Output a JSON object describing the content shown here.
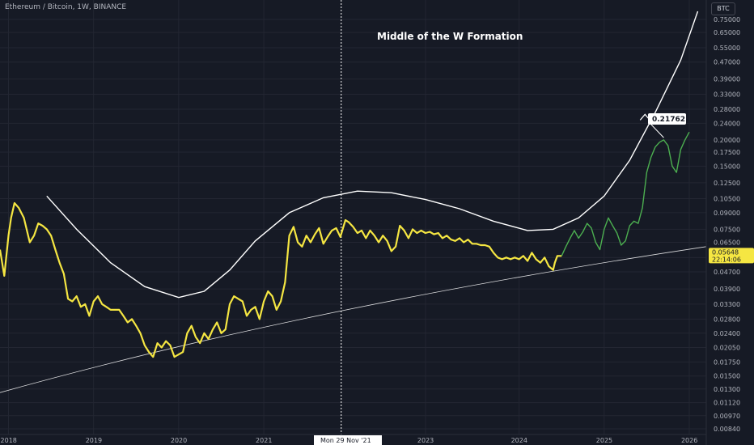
{
  "header": {
    "symbol_line": "Ethereum / Bitcoin, 1W, BINANCE"
  },
  "chart_data": {
    "type": "line",
    "title": "Middle of the W Formation",
    "y_unit": "BTC",
    "y_scale": "log",
    "ylim": [
      0.0084,
      0.82
    ],
    "xlim": [
      2017.9,
      2026.2
    ],
    "x_ticks": [
      "2018",
      "2019",
      "2020",
      "2021",
      "2023",
      "2024",
      "2025",
      "2026"
    ],
    "y_ticks": [
      "0.75000",
      "0.65000",
      "0.55000",
      "0.47000",
      "0.39000",
      "0.33000",
      "0.28000",
      "0.24000",
      "0.20000",
      "0.17500",
      "0.15000",
      "0.12500",
      "0.10500",
      "0.09000",
      "0.07500",
      "0.06500",
      "0.05500",
      "0.04700",
      "0.03900",
      "0.03300",
      "0.02800",
      "0.02400",
      "0.02050",
      "0.01750",
      "0.01500",
      "0.01300",
      "0.01120",
      "0.00970",
      "0.00840"
    ],
    "crosshair": {
      "date_label": "Mon 29 Nov '21"
    },
    "price_label": {
      "value": "0.05648",
      "countdown": "22:14:06",
      "color": "#f5e642"
    },
    "target_label": {
      "value": "0.21762"
    },
    "series": [
      {
        "color": "#f5e642",
        "points": [
          [
            2017.9,
            0.06
          ],
          [
            2017.95,
            0.045
          ],
          [
            2018.0,
            0.07
          ],
          [
            2018.03,
            0.085
          ],
          [
            2018.07,
            0.1
          ],
          [
            2018.12,
            0.095
          ],
          [
            2018.18,
            0.085
          ],
          [
            2018.25,
            0.065
          ],
          [
            2018.3,
            0.07
          ],
          [
            2018.35,
            0.08
          ],
          [
            2018.4,
            0.078
          ],
          [
            2018.45,
            0.075
          ],
          [
            2018.5,
            0.07
          ],
          [
            2018.55,
            0.06
          ],
          [
            2018.6,
            0.052
          ],
          [
            2018.65,
            0.046
          ],
          [
            2018.7,
            0.035
          ],
          [
            2018.75,
            0.034
          ],
          [
            2018.8,
            0.036
          ],
          [
            2018.85,
            0.032
          ],
          [
            2018.9,
            0.033
          ],
          [
            2018.95,
            0.029
          ],
          [
            2019.0,
            0.034
          ],
          [
            2019.05,
            0.036
          ],
          [
            2019.1,
            0.033
          ],
          [
            2019.15,
            0.032
          ],
          [
            2019.2,
            0.031
          ],
          [
            2019.3,
            0.031
          ],
          [
            2019.35,
            0.029
          ],
          [
            2019.4,
            0.027
          ],
          [
            2019.45,
            0.028
          ],
          [
            2019.5,
            0.026
          ],
          [
            2019.55,
            0.024
          ],
          [
            2019.6,
            0.021
          ],
          [
            2019.65,
            0.0195
          ],
          [
            2019.7,
            0.0185
          ],
          [
            2019.75,
            0.0215
          ],
          [
            2019.8,
            0.0205
          ],
          [
            2019.85,
            0.022
          ],
          [
            2019.9,
            0.021
          ],
          [
            2019.95,
            0.0185
          ],
          [
            2020.0,
            0.019
          ],
          [
            2020.05,
            0.0195
          ],
          [
            2020.1,
            0.024
          ],
          [
            2020.15,
            0.026
          ],
          [
            2020.2,
            0.023
          ],
          [
            2020.25,
            0.0215
          ],
          [
            2020.3,
            0.024
          ],
          [
            2020.35,
            0.0225
          ],
          [
            2020.4,
            0.025
          ],
          [
            2020.45,
            0.027
          ],
          [
            2020.5,
            0.024
          ],
          [
            2020.55,
            0.025
          ],
          [
            2020.6,
            0.033
          ],
          [
            2020.65,
            0.036
          ],
          [
            2020.7,
            0.035
          ],
          [
            2020.75,
            0.034
          ],
          [
            2020.8,
            0.029
          ],
          [
            2020.85,
            0.031
          ],
          [
            2020.9,
            0.032
          ],
          [
            2020.95,
            0.028
          ],
          [
            2021.0,
            0.034
          ],
          [
            2021.05,
            0.038
          ],
          [
            2021.1,
            0.036
          ],
          [
            2021.15,
            0.031
          ],
          [
            2021.2,
            0.034
          ],
          [
            2021.25,
            0.042
          ],
          [
            2021.3,
            0.07
          ],
          [
            2021.35,
            0.077
          ],
          [
            2021.4,
            0.065
          ],
          [
            2021.45,
            0.062
          ],
          [
            2021.5,
            0.07
          ],
          [
            2021.55,
            0.065
          ],
          [
            2021.6,
            0.071
          ],
          [
            2021.65,
            0.076
          ],
          [
            2021.7,
            0.064
          ],
          [
            2021.75,
            0.069
          ],
          [
            2021.8,
            0.074
          ],
          [
            2021.85,
            0.076
          ],
          [
            2021.9,
            0.069
          ],
          [
            2021.96,
            0.083
          ],
          [
            2022.0,
            0.081
          ],
          [
            2022.05,
            0.077
          ],
          [
            2022.1,
            0.072
          ],
          [
            2022.15,
            0.074
          ],
          [
            2022.2,
            0.068
          ],
          [
            2022.25,
            0.074
          ],
          [
            2022.3,
            0.07
          ],
          [
            2022.35,
            0.065
          ],
          [
            2022.4,
            0.07
          ],
          [
            2022.45,
            0.066
          ],
          [
            2022.5,
            0.059
          ],
          [
            2022.55,
            0.062
          ],
          [
            2022.6,
            0.078
          ],
          [
            2022.65,
            0.074
          ],
          [
            2022.7,
            0.068
          ],
          [
            2022.75,
            0.075
          ],
          [
            2022.8,
            0.072
          ],
          [
            2022.85,
            0.074
          ],
          [
            2022.9,
            0.072
          ],
          [
            2022.95,
            0.073
          ],
          [
            2023.0,
            0.071
          ],
          [
            2023.05,
            0.072
          ],
          [
            2023.1,
            0.068
          ],
          [
            2023.15,
            0.07
          ],
          [
            2023.2,
            0.067
          ],
          [
            2023.25,
            0.066
          ],
          [
            2023.3,
            0.068
          ],
          [
            2023.35,
            0.065
          ],
          [
            2023.4,
            0.067
          ],
          [
            2023.45,
            0.064
          ],
          [
            2023.5,
            0.064
          ],
          [
            2023.55,
            0.063
          ],
          [
            2023.6,
            0.063
          ],
          [
            2023.65,
            0.062
          ],
          [
            2023.7,
            0.058
          ],
          [
            2023.75,
            0.055
          ],
          [
            2023.8,
            0.054
          ],
          [
            2023.85,
            0.055
          ],
          [
            2023.9,
            0.054
          ],
          [
            2023.95,
            0.055
          ],
          [
            2024.0,
            0.054
          ],
          [
            2024.05,
            0.056
          ],
          [
            2024.1,
            0.053
          ],
          [
            2024.15,
            0.058
          ],
          [
            2024.2,
            0.054
          ],
          [
            2024.25,
            0.052
          ],
          [
            2024.3,
            0.055
          ],
          [
            2024.35,
            0.05
          ],
          [
            2024.4,
            0.048
          ],
          [
            2024.42,
            0.052
          ],
          [
            2024.45,
            0.056
          ],
          [
            2024.5,
            0.056
          ]
        ]
      },
      {
        "color": "#4caf50",
        "points": [
          [
            2024.5,
            0.056
          ],
          [
            2024.55,
            0.062
          ],
          [
            2024.6,
            0.068
          ],
          [
            2024.65,
            0.074
          ],
          [
            2024.7,
            0.068
          ],
          [
            2024.75,
            0.073
          ],
          [
            2024.8,
            0.08
          ],
          [
            2024.85,
            0.076
          ],
          [
            2024.9,
            0.065
          ],
          [
            2024.95,
            0.06
          ],
          [
            2025.0,
            0.075
          ],
          [
            2025.05,
            0.085
          ],
          [
            2025.1,
            0.078
          ],
          [
            2025.15,
            0.072
          ],
          [
            2025.2,
            0.063
          ],
          [
            2025.25,
            0.066
          ],
          [
            2025.3,
            0.078
          ],
          [
            2025.35,
            0.082
          ],
          [
            2025.4,
            0.08
          ],
          [
            2025.45,
            0.095
          ],
          [
            2025.5,
            0.14
          ],
          [
            2025.55,
            0.165
          ],
          [
            2025.6,
            0.185
          ],
          [
            2025.65,
            0.195
          ],
          [
            2025.7,
            0.2
          ],
          [
            2025.75,
            0.188
          ],
          [
            2025.8,
            0.15
          ],
          [
            2025.85,
            0.14
          ],
          [
            2025.9,
            0.18
          ],
          [
            2025.95,
            0.2
          ],
          [
            2026.0,
            0.218
          ]
        ]
      }
    ]
  }
}
